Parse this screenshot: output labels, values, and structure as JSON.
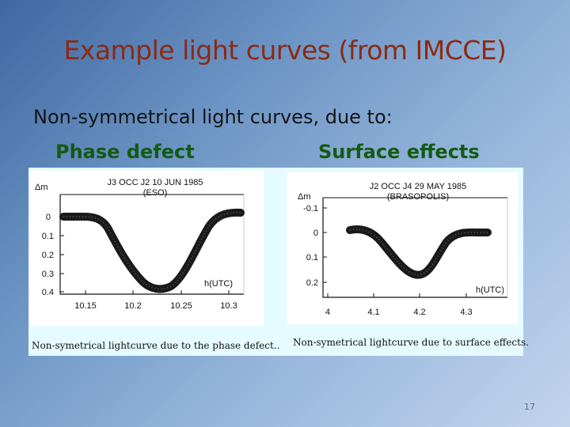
{
  "slide": {
    "title": "Example light curves (from IMCCE)",
    "subtitle": "Non-symmetrical light curves, due to:",
    "label_left": "Phase defect",
    "label_right": "Surface effects",
    "page_number": "17"
  },
  "figures": [
    {
      "header": "J3  OCC  J2  10  JUN  1985",
      "observatory": "(ESO)",
      "y_axis_label": "Δm",
      "y_ticks": [
        "0",
        "0.1",
        "0.2",
        "0.3",
        "0.4"
      ],
      "x_axis_label": "h(UTC)",
      "x_ticks": [
        "10.15",
        "10.2",
        "10.25",
        "10.3"
      ],
      "caption": "Non-symetrical lightcurve due to the phase defect.."
    },
    {
      "header": "J2  OCC  J4  29  MAY  1985",
      "observatory": "(BRASOPOLIS)",
      "y_axis_label": "Δm",
      "y_ticks": [
        "-0.1",
        "0",
        "0.1",
        "0.2"
      ],
      "x_axis_label": "h(UTC)",
      "x_ticks": [
        "4",
        "4.1",
        "4.2",
        "4.3"
      ],
      "caption": "Non-symetrical lightcurve due to surface effects."
    }
  ],
  "colors": {
    "title": "#8b2a14",
    "labels": "#145a14",
    "panel": "#e6fbff"
  }
}
